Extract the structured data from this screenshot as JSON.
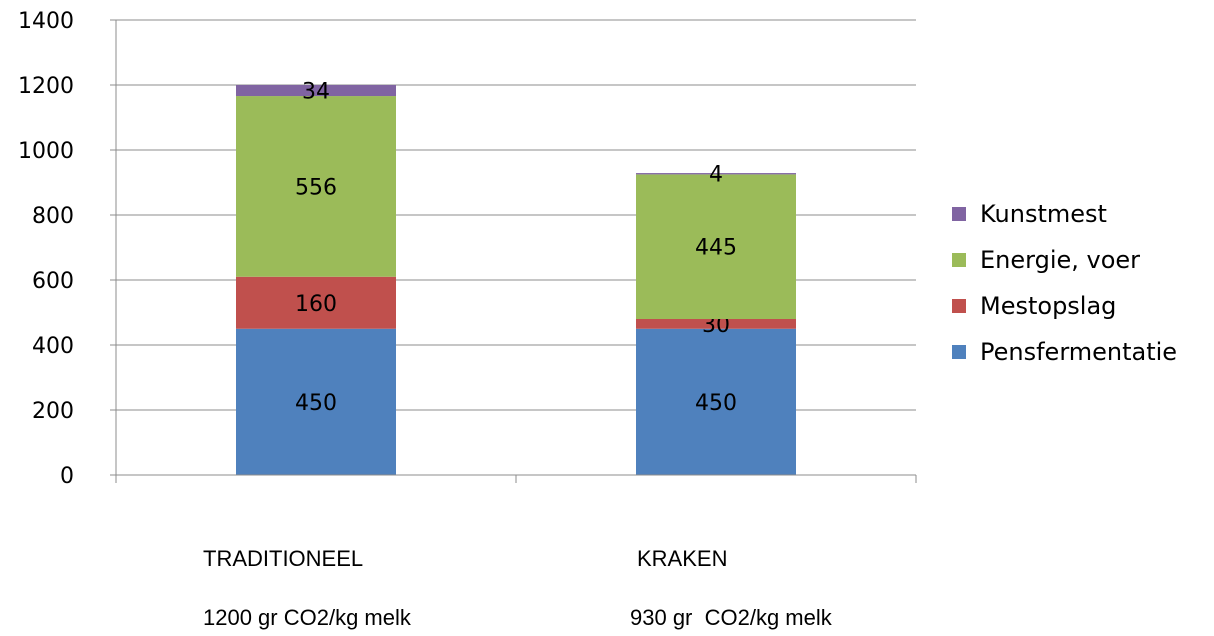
{
  "chart_data": {
    "type": "bar",
    "stacked": true,
    "categories": [
      "TRADITIONEEL",
      "KRAKEN"
    ],
    "category_sublabels": [
      "1200 gr CO2/kg melk",
      "930 gr  CO2/kg melk"
    ],
    "series": [
      {
        "name": "Pensfermentatie",
        "values": [
          450,
          450
        ],
        "color": "#4F81BD"
      },
      {
        "name": "Mestopslag",
        "values": [
          160,
          30
        ],
        "color": "#C0504D"
      },
      {
        "name": "Energie, voer",
        "values": [
          556,
          445
        ],
        "color": "#9BBB59"
      },
      {
        "name": "Kunstmest",
        "values": [
          34,
          4
        ],
        "color": "#8064A2"
      }
    ],
    "ylim": [
      0,
      1400
    ],
    "yticks": [
      0,
      200,
      400,
      600,
      800,
      1000,
      1200,
      1400
    ],
    "grid": true,
    "legend_position": "right",
    "legend_order": [
      "Kunstmest",
      "Energie, voer",
      "Mestopslag",
      "Pensfermentatie"
    ],
    "title": "",
    "xlabel": "",
    "ylabel": ""
  }
}
